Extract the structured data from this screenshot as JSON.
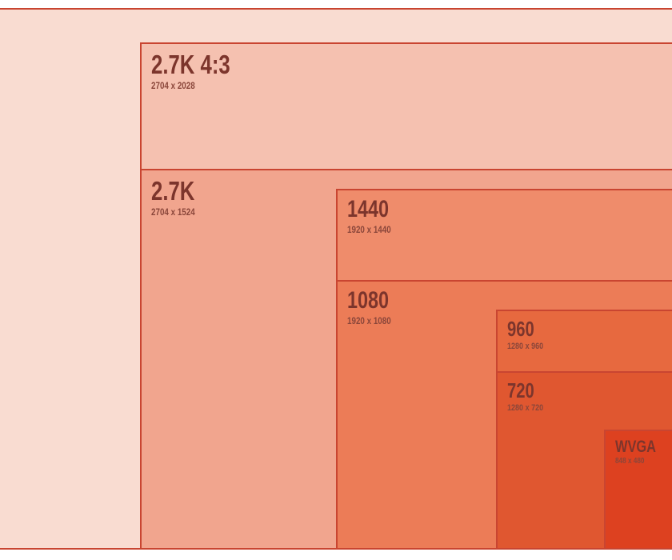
{
  "palette": {
    "page_background": "#ffffff",
    "border": "#c94531",
    "title_text": "#7c352c",
    "subtitle_text": "#8a463a"
  },
  "rectangles": [
    {
      "id": "outer",
      "fill": "#f9dcd1"
    },
    {
      "id": "2.7k-4:3",
      "label": "2.7K 4:3",
      "dimensions": "2704 x 2028",
      "fill": "#f5c1b0"
    },
    {
      "id": "2.7k",
      "label": "2.7K",
      "dimensions": "2704 x 1524",
      "fill": "#f1a58e"
    },
    {
      "id": "1440",
      "label": "1440",
      "dimensions": "1920 x 1440",
      "fill": "#ef8c6b"
    },
    {
      "id": "1080",
      "label": "1080",
      "dimensions": "1920 x 1080",
      "fill": "#ec7c57"
    },
    {
      "id": "960",
      "label": "960",
      "dimensions": "1280 x 960",
      "fill": "#e7693f"
    },
    {
      "id": "720",
      "label": "720",
      "dimensions": "1280 x 720",
      "fill": "#e05730"
    },
    {
      "id": "wvga",
      "label": "WVGA",
      "dimensions": "848 x 480",
      "fill": "#dd4120"
    }
  ]
}
